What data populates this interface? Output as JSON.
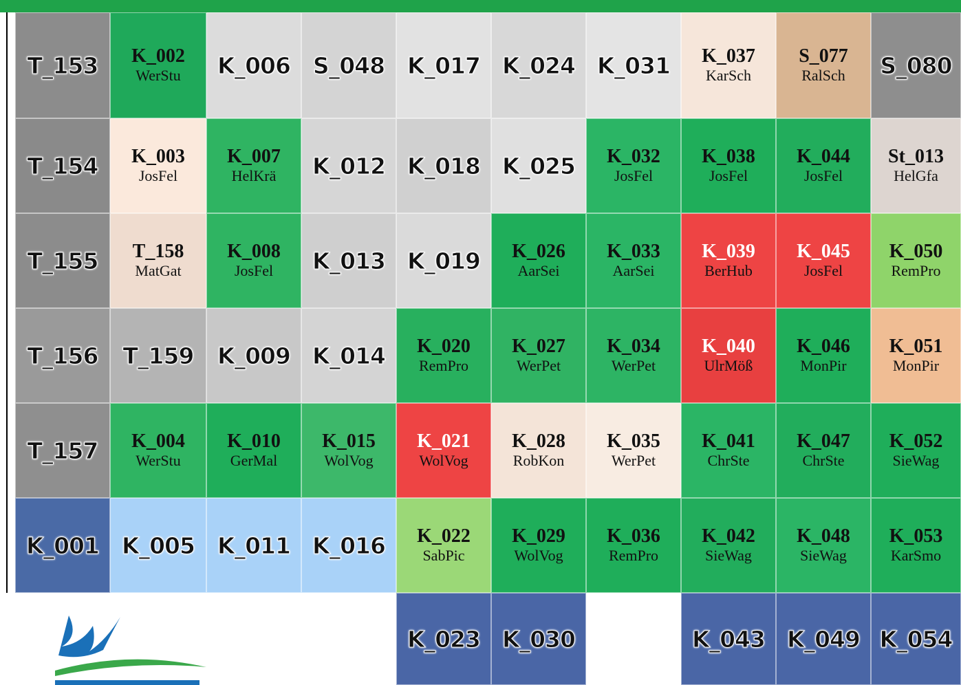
{
  "grid": {
    "rows": [
      [
        {
          "code": "T_153",
          "color": "#8c8c8c"
        },
        {
          "code": "K_002",
          "name": "WerStu",
          "color": "#1fa95a"
        },
        {
          "code": "K_006",
          "color": "#dcdcdc"
        },
        {
          "code": "S_048",
          "color": "#d4d4d4"
        },
        {
          "code": "K_017",
          "color": "#e2e2e2"
        },
        {
          "code": "K_024",
          "color": "#d8d8d8"
        },
        {
          "code": "K_031",
          "color": "#e4e4e4"
        },
        {
          "code": "K_037",
          "name": "KarSch",
          "color": "#f6e6da"
        },
        {
          "code": "S_077",
          "name": "RalSch",
          "color": "#d9b592"
        },
        {
          "code": "S_080",
          "color": "#8e8e8e"
        }
      ],
      [
        {
          "code": "T_154",
          "color": "#8a8a8a"
        },
        {
          "code": "K_003",
          "name": "JosFel",
          "color": "#fbe9dc"
        },
        {
          "code": "K_007",
          "name": "HelKrä",
          "color": "#2fb462"
        },
        {
          "code": "K_012",
          "color": "#d6d6d6"
        },
        {
          "code": "K_018",
          "color": "#d0d0d0"
        },
        {
          "code": "K_025",
          "color": "#e0e0e0"
        },
        {
          "code": "K_032",
          "name": "JosFel",
          "color": "#2bb565"
        },
        {
          "code": "K_038",
          "name": "JosFel",
          "color": "#1fae5a"
        },
        {
          "code": "K_044",
          "name": "JosFel",
          "color": "#22ad5c"
        },
        {
          "code": "St_013",
          "name": "HelGfa",
          "color": "#ddd5d0"
        }
      ],
      [
        {
          "code": "T_155",
          "color": "#8c8c8c"
        },
        {
          "code": "T_158",
          "name": "MatGat",
          "color": "#efdccf"
        },
        {
          "code": "K_008",
          "name": "JosFel",
          "color": "#2fb462"
        },
        {
          "code": "K_013",
          "color": "#cfcfcf"
        },
        {
          "code": "K_019",
          "color": "#dadada"
        },
        {
          "code": "K_026",
          "name": "AarSei",
          "color": "#1fae5a"
        },
        {
          "code": "K_033",
          "name": "AarSei",
          "color": "#2bb565"
        },
        {
          "code": "K_039",
          "name": "BerHub",
          "color": "#ee4444",
          "text_color": "#ffffff"
        },
        {
          "code": "K_045",
          "name": "JosFel",
          "color": "#ee4444",
          "text_color": "#ffffff"
        },
        {
          "code": "K_050",
          "name": "RemPro",
          "color": "#8fd46a"
        }
      ],
      [
        {
          "code": "T_156",
          "color": "#9a9a9a"
        },
        {
          "code": "T_159",
          "color": "#b4b4b4"
        },
        {
          "code": "K_009",
          "color": "#c8c8c8"
        },
        {
          "code": "K_014",
          "color": "#d4d4d4"
        },
        {
          "code": "K_020",
          "name": "RemPro",
          "color": "#28b05e"
        },
        {
          "code": "K_027",
          "name": "WerPet",
          "color": "#30b363"
        },
        {
          "code": "K_034",
          "name": "WerPet",
          "color": "#2db464"
        },
        {
          "code": "K_040",
          "name": "UlrMöß",
          "color": "#e84040",
          "text_color": "#ffffff"
        },
        {
          "code": "K_046",
          "name": "MonPir",
          "color": "#1fae5a"
        },
        {
          "code": "K_051",
          "name": "MonPir",
          "color": "#f0bd94"
        }
      ],
      [
        {
          "code": "T_157",
          "color": "#8f8f8f"
        },
        {
          "code": "K_004",
          "name": "WerStu",
          "color": "#2fb462"
        },
        {
          "code": "K_010",
          "name": "GerMal",
          "color": "#1fae5a"
        },
        {
          "code": "K_015",
          "name": "WolVog",
          "color": "#3db86a"
        },
        {
          "code": "K_021",
          "name": "WolVog",
          "color": "#ee4444",
          "text_color": "#ffffff"
        },
        {
          "code": "K_028",
          "name": "RobKon",
          "color": "#f4e4d8"
        },
        {
          "code": "K_035",
          "name": "WerPet",
          "color": "#f8ece2"
        },
        {
          "code": "K_041",
          "name": "ChrSte",
          "color": "#2bb565"
        },
        {
          "code": "K_047",
          "name": "ChrSte",
          "color": "#22ad5c"
        },
        {
          "code": "K_052",
          "name": "SieWag",
          "color": "#1fae5a"
        }
      ],
      [
        {
          "code": "K_001",
          "color": "#4a6aa6"
        },
        {
          "code": "K_005",
          "color": "#a9d2f8"
        },
        {
          "code": "K_011",
          "color": "#a9d2f8"
        },
        {
          "code": "K_016",
          "color": "#a9d2f8"
        },
        {
          "code": "K_022",
          "name": "SabPic",
          "color": "#9bd877"
        },
        {
          "code": "K_029",
          "name": "WolVog",
          "color": "#1fae5a"
        },
        {
          "code": "K_036",
          "name": "RemPro",
          "color": "#1fae5a"
        },
        {
          "code": "K_042",
          "name": "SieWag",
          "color": "#22ad5c"
        },
        {
          "code": "K_048",
          "name": "SieWag",
          "color": "#2bb565"
        },
        {
          "code": "K_053",
          "name": "KarSmo",
          "color": "#1fae5a"
        }
      ],
      [
        null,
        null,
        null,
        null,
        {
          "code": "K_023",
          "color": "#4a66a6"
        },
        {
          "code": "K_030",
          "color": "#4a66a6"
        },
        null,
        {
          "code": "K_043",
          "color": "#4a66a6"
        },
        {
          "code": "K_049",
          "color": "#4a66a6"
        },
        {
          "code": "K_054",
          "color": "#4a66a6"
        }
      ]
    ]
  }
}
